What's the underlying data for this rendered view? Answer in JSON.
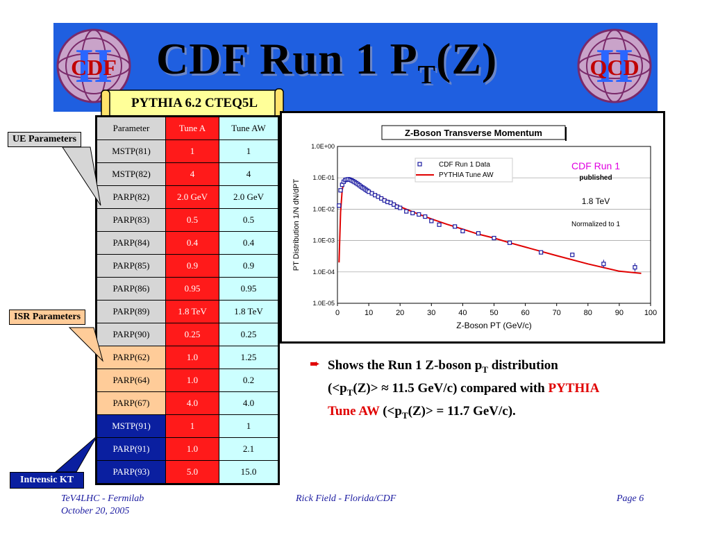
{
  "slide": {
    "title_main": "CDF Run 1 P",
    "title_sub": "T",
    "title_tail": "(Z)",
    "logo_left_text": "CDF",
    "logo_right_text": "QCD",
    "logo_roman": "II",
    "scroll_label": "PYTHIA 6.2 CTEQ5L"
  },
  "table": {
    "headers": [
      "Parameter",
      "Tune A",
      "Tune AW"
    ],
    "rows": [
      {
        "name": "MSTP(81)",
        "a": "1",
        "aw": "1",
        "group": "ue"
      },
      {
        "name": "MSTP(82)",
        "a": "4",
        "aw": "4",
        "group": "ue"
      },
      {
        "name": "PARP(82)",
        "a": "2.0 GeV",
        "aw": "2.0 GeV",
        "group": "ue"
      },
      {
        "name": "PARP(83)",
        "a": "0.5",
        "aw": "0.5",
        "group": "ue"
      },
      {
        "name": "PARP(84)",
        "a": "0.4",
        "aw": "0.4",
        "group": "ue"
      },
      {
        "name": "PARP(85)",
        "a": "0.9",
        "aw": "0.9",
        "group": "ue"
      },
      {
        "name": "PARP(86)",
        "a": "0.95",
        "aw": "0.95",
        "group": "ue"
      },
      {
        "name": "PARP(89)",
        "a": "1.8 TeV",
        "aw": "1.8 TeV",
        "group": "ue"
      },
      {
        "name": "PARP(90)",
        "a": "0.25",
        "aw": "0.25",
        "group": "ue"
      },
      {
        "name": "PARP(62)",
        "a": "1.0",
        "aw": "1.25",
        "group": "isr"
      },
      {
        "name": "PARP(64)",
        "a": "1.0",
        "aw": "0.2",
        "group": "isr"
      },
      {
        "name": "PARP(67)",
        "a": "4.0",
        "aw": "4.0",
        "group": "isr"
      },
      {
        "name": "MSTP(91)",
        "a": "1",
        "aw": "1",
        "group": "kt"
      },
      {
        "name": "PARP(91)",
        "a": "1.0",
        "aw": "2.1",
        "group": "kt"
      },
      {
        "name": "PARP(93)",
        "a": "5.0",
        "aw": "15.0",
        "group": "kt"
      }
    ]
  },
  "callouts": {
    "ue": "UE Parameters",
    "isr": "ISR Parameters",
    "kt": "Intrensic KT"
  },
  "chart_data": {
    "type": "scatter",
    "title": "Z-Boson Transverse Momentum",
    "xlabel": "Z-Boson PT (GeV/c)",
    "ylabel": "PT Distribution 1/N dN/dPT",
    "xlim": [
      0,
      100
    ],
    "ylim": [
      1e-05,
      1
    ],
    "y_scale": "log",
    "x_ticks": [
      "0",
      "10",
      "20",
      "30",
      "40",
      "50",
      "60",
      "70",
      "80",
      "90",
      "100"
    ],
    "y_ticks": [
      "1.0E+00",
      "1.0E-01",
      "1.0E-02",
      "1.0E-03",
      "1.0E-04",
      "1.0E-05"
    ],
    "legend": [
      "CDF Run 1 Data",
      "PYTHIA Tune AW"
    ],
    "annotations": [
      "CDF Run 1",
      "published",
      "1.8 TeV",
      "Normalized to 1"
    ],
    "series": [
      {
        "name": "CDF Run 1 Data",
        "marker": "open-square",
        "color": "#1a1aa0",
        "x": [
          0.5,
          1,
          1.5,
          2,
          2.5,
          3,
          3.5,
          4,
          4.5,
          5,
          5.5,
          6,
          6.5,
          7,
          7.5,
          8,
          8.5,
          9,
          9.5,
          10,
          11,
          12,
          13,
          14,
          15,
          16,
          17,
          18,
          19,
          20,
          22,
          24,
          26,
          28,
          30,
          32.5,
          37.5,
          40,
          45,
          50,
          55,
          65,
          75,
          85,
          95
        ],
        "y": [
          0.013,
          0.04,
          0.06,
          0.075,
          0.085,
          0.088,
          0.09,
          0.087,
          0.083,
          0.078,
          0.073,
          0.068,
          0.063,
          0.058,
          0.053,
          0.049,
          0.046,
          0.042,
          0.039,
          0.036,
          0.032,
          0.028,
          0.025,
          0.022,
          0.019,
          0.017,
          0.016,
          0.014,
          0.012,
          0.011,
          0.0085,
          0.0075,
          0.0068,
          0.0058,
          0.0042,
          0.0032,
          0.0028,
          0.002,
          0.0017,
          0.0012,
          0.00085,
          0.00042,
          0.00035,
          0.00018,
          0.00014
        ]
      },
      {
        "name": "PYTHIA Tune AW",
        "marker": "line",
        "color": "#e00000",
        "x": [
          0.5,
          1,
          1.5,
          2,
          3,
          4,
          5,
          6,
          8,
          10,
          12,
          15,
          20,
          25,
          30,
          35,
          40,
          45,
          50,
          55,
          60,
          70,
          80,
          90,
          97
        ],
        "y": [
          0.0002,
          0.008,
          0.04,
          0.07,
          0.09,
          0.088,
          0.08,
          0.07,
          0.052,
          0.04,
          0.03,
          0.021,
          0.012,
          0.0075,
          0.0049,
          0.0033,
          0.0023,
          0.0016,
          0.0012,
          0.00085,
          0.00062,
          0.00033,
          0.00018,
          0.000105,
          9e-05
        ]
      }
    ]
  },
  "bullet": {
    "line1_pre": "Shows the Run 1 Z-boson p",
    "line1_sub": "T",
    "line1_post": " distribution",
    "line2_pre": "(<p",
    "line2_sub": "T",
    "line2_mid": "(Z)> ≈ 11.5 GeV/c) compared with ",
    "line2_red": "PYTHIA",
    "line3_red": "Tune AW",
    "line3_pre": " (<p",
    "line3_sub": "T",
    "line3_post": "(Z)> = 11.7 GeV/c)."
  },
  "footer": {
    "left1": "TeV4LHC - Fermilab",
    "left2": "October 20, 2005",
    "center": "Rick Field - Florida/CDF",
    "right": "Page 6"
  }
}
